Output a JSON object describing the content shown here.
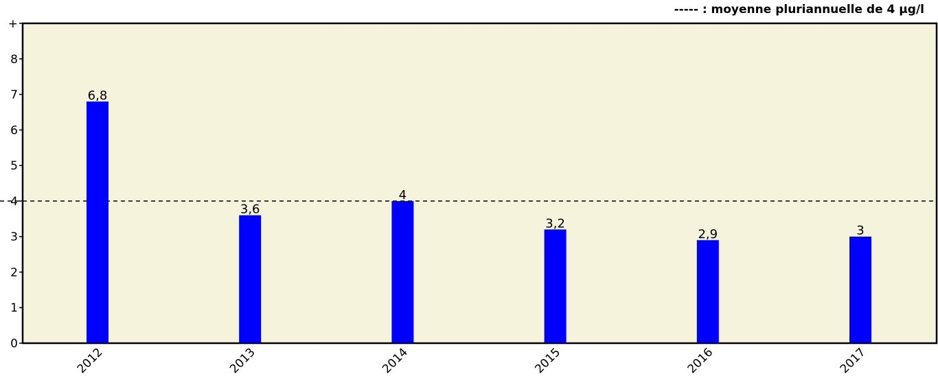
{
  "legend": {
    "text": "----- : moyenne pluriannuelle de 4 µg/l"
  },
  "chart_data": {
    "type": "bar",
    "categories": [
      "2012",
      "2013",
      "2014",
      "2015",
      "2016",
      "2017"
    ],
    "values": [
      6.8,
      3.6,
      4,
      3.2,
      2.9,
      3
    ],
    "value_labels": [
      "6,8",
      "3,6",
      "4",
      "3,2",
      "2,9",
      "3"
    ],
    "y_ticks": [
      "0",
      "1",
      "2",
      "3",
      "4",
      "5",
      "6",
      "7",
      "8",
      "+"
    ],
    "ylim": [
      0,
      9
    ],
    "reference_line": {
      "value": 4
    },
    "colors": {
      "bar": "#0000ff",
      "plot_background": "#f5f3dc",
      "reference_line": "#000000"
    },
    "grid": false,
    "legend_position": "top-right"
  }
}
